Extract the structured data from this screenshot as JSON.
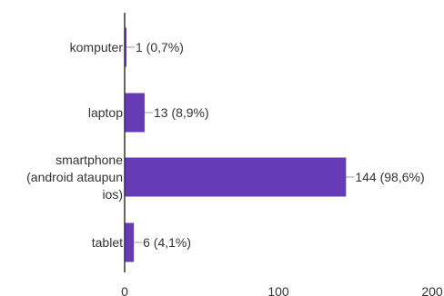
{
  "chart_data": {
    "type": "bar",
    "orientation": "horizontal",
    "categories": [
      [
        "komputer"
      ],
      [
        "laptop"
      ],
      [
        "smartphone",
        "(android ataupun",
        "ios)"
      ],
      [
        "tablet"
      ]
    ],
    "values": [
      1,
      13,
      144,
      6
    ],
    "data_labels": [
      "1 (0,7%)",
      "13 (8,9%)",
      "144 (98,6%)",
      "6 (4,1%)"
    ],
    "xlim": [
      0,
      200
    ],
    "x_ticks": [
      0,
      100,
      200
    ],
    "x_tick_labels": [
      "0",
      "100",
      "200"
    ],
    "title": "",
    "xlabel": "",
    "ylabel": "",
    "grid": false,
    "colors": {
      "bar": "#673ab7",
      "axis": "#333333",
      "leader": "#9e9e9e"
    }
  }
}
